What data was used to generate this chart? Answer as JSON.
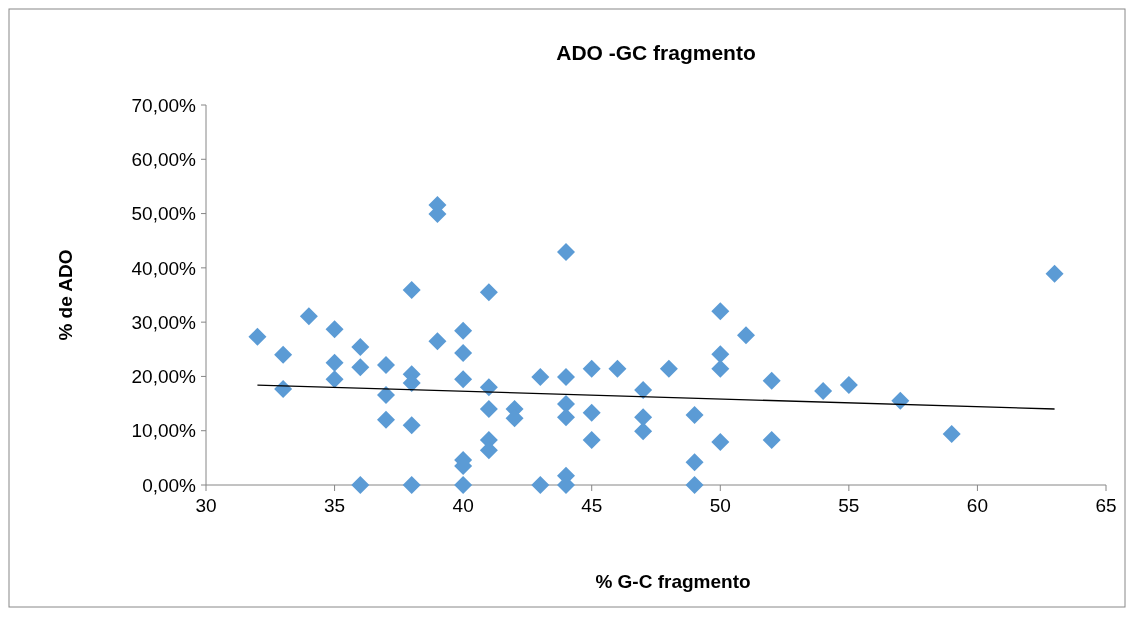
{
  "chart_data": {
    "type": "scatter",
    "title": "ADO -GC fragmento",
    "xlabel": "% G-C fragmento",
    "ylabel": "%  de ADO",
    "grid": false,
    "xlim": [
      30,
      65
    ],
    "xticks": [
      30,
      35,
      40,
      45,
      50,
      55,
      60,
      65
    ],
    "ylim": [
      0,
      70
    ],
    "yticks": [
      {
        "value": 0,
        "label": "0,00%"
      },
      {
        "value": 10,
        "label": "10,00%"
      },
      {
        "value": 20,
        "label": "20,00%"
      },
      {
        "value": 30,
        "label": "30,00%"
      },
      {
        "value": 40,
        "label": "40,00%"
      },
      {
        "value": 50,
        "label": "50,00%"
      },
      {
        "value": 60,
        "label": "60,00%"
      },
      {
        "value": 70,
        "label": "70,00%"
      }
    ],
    "series": [
      {
        "color": "#5b9bd5",
        "marker": "diamond",
        "x": [
          32,
          33,
          33,
          34,
          35,
          35,
          35,
          36,
          36,
          36,
          37,
          37,
          37,
          38,
          38,
          38,
          38,
          38,
          39,
          39,
          39,
          40,
          40,
          40,
          40,
          40,
          40,
          41,
          41,
          41,
          41,
          41,
          42,
          42,
          43,
          43,
          44,
          44,
          44,
          44,
          44,
          44,
          45,
          45,
          45,
          46,
          47,
          47,
          47,
          48,
          49,
          49,
          49,
          50,
          50,
          50,
          50,
          51,
          52,
          52,
          54,
          55,
          57,
          59,
          63
        ],
        "values": [
          27.3,
          24.0,
          17.7,
          31.1,
          28.7,
          22.5,
          19.5,
          25.4,
          21.7,
          0,
          22.1,
          16.6,
          12.0,
          35.9,
          20.4,
          18.8,
          11.0,
          0,
          51.6,
          49.9,
          26.5,
          28.4,
          24.3,
          19.5,
          4.6,
          3.5,
          0,
          35.5,
          18.0,
          14.0,
          8.3,
          6.4,
          14.0,
          12.3,
          19.9,
          0,
          42.9,
          19.9,
          14.9,
          12.5,
          1.7,
          0,
          21.4,
          13.3,
          8.3,
          21.4,
          17.5,
          12.5,
          9.9,
          21.4,
          12.9,
          4.2,
          0,
          32.0,
          24.1,
          21.4,
          7.9,
          27.6,
          19.2,
          8.3,
          17.3,
          18.4,
          15.5,
          9.4,
          38.9
        ]
      },
      {
        "type": "line",
        "marker": "none",
        "color": "#000000",
        "x": [
          32,
          63
        ],
        "values": [
          18.4,
          14.0
        ]
      }
    ]
  }
}
